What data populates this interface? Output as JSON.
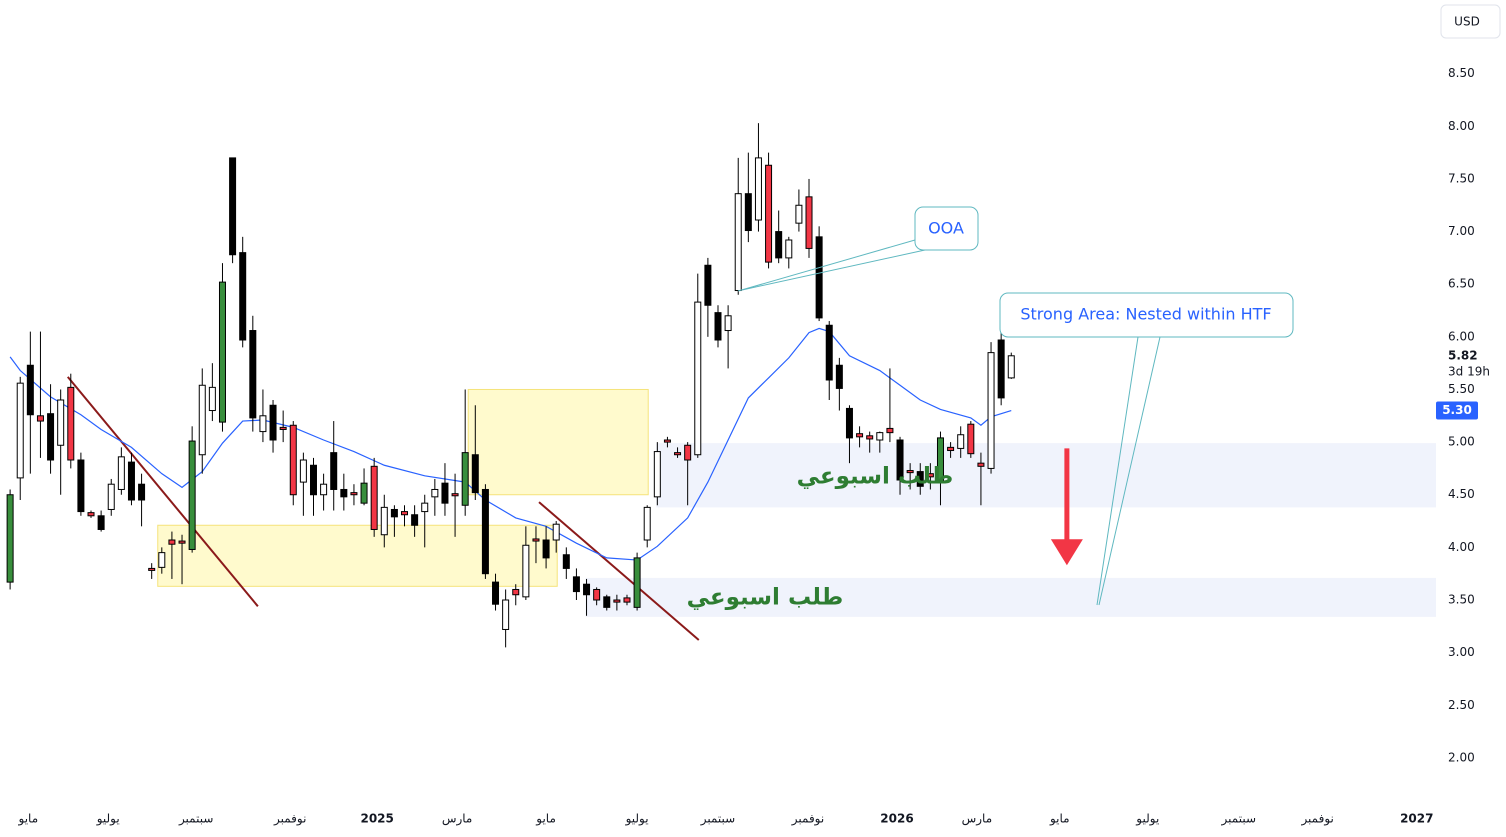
{
  "chart_data": {
    "type": "candlestick",
    "currency": "USD",
    "xlim": [
      -1,
      141
    ],
    "ylim": [
      1.6,
      9.2
    ],
    "grid": false,
    "xticks": [
      {
        "value": 1.8,
        "label": "مايو"
      },
      {
        "value": 9.7,
        "label": "يوليو"
      },
      {
        "value": 18.4,
        "label": "سبتمبر"
      },
      {
        "value": 27.7,
        "label": "نوفمبر"
      },
      {
        "value": 36.3,
        "label": "2025"
      },
      {
        "value": 44.2,
        "label": "مارس"
      },
      {
        "value": 53.0,
        "label": "مايو"
      },
      {
        "value": 62.0,
        "label": "يوليو"
      },
      {
        "value": 70.0,
        "label": "سبتمبر"
      },
      {
        "value": 78.9,
        "label": "نوفمبر"
      },
      {
        "value": 87.7,
        "label": "2026"
      },
      {
        "value": 95.6,
        "label": "مارس"
      },
      {
        "value": 103.8,
        "label": "مايو"
      },
      {
        "value": 112.5,
        "label": "يوليو"
      },
      {
        "value": 121.5,
        "label": "سبتمبر"
      },
      {
        "value": 129.3,
        "label": "نوفمبر"
      },
      {
        "value": 139.1,
        "label": "2027"
      }
    ],
    "yticks": [
      {
        "value": 2,
        "label": "2.00"
      },
      {
        "value": 2.5,
        "label": "2.50"
      },
      {
        "value": 3,
        "label": "3.00"
      },
      {
        "value": 3.5,
        "label": "3.50"
      },
      {
        "value": 4,
        "label": "4.00"
      },
      {
        "value": 4.5,
        "label": "4.50"
      },
      {
        "value": 5,
        "label": "5.00"
      },
      {
        "value": 5.5,
        "label": "5.50"
      },
      {
        "value": 6,
        "label": "6.00"
      },
      {
        "value": 6.5,
        "label": "6.50"
      },
      {
        "value": 7,
        "label": "7.00"
      },
      {
        "value": 7.5,
        "label": "7.50"
      },
      {
        "value": 8,
        "label": "8.00"
      },
      {
        "value": 8.5,
        "label": "8.50"
      }
    ],
    "open": [
      3.67,
      4.66,
      5.73,
      5.25,
      5.27,
      4.97,
      5.52,
      4.83,
      4.33,
      4.3,
      4.36,
      4.55,
      4.81,
      4.6,
      3.8,
      3.81,
      4.07,
      4.06,
      3.98,
      4.88,
      5.3,
      5.19,
      7.7,
      6.8,
      6.06,
      5.1,
      5.35,
      5.14,
      5.16,
      4.62,
      4.78,
      4.5,
      4.9,
      4.55,
      4.52,
      4.42,
      4.77,
      4.12,
      4.36,
      4.34,
      4.31,
      4.34,
      4.48,
      4.61,
      4.51,
      4.4,
      4.88,
      4.55,
      3.67,
      3.22,
      3.55,
      3.53,
      4.08,
      4.07,
      4.07,
      3.93,
      3.72,
      3.65,
      3.6,
      3.53,
      3.5,
      3.52,
      3.43,
      4.07,
      4.48,
      5.02,
      4.9,
      4.97,
      4.88,
      6.68,
      6.23,
      6.06,
      6.44,
      7.36,
      7.11,
      7.63,
      7.0,
      6.75,
      7.08,
      7.33,
      6.95,
      6.11,
      5.73,
      5.32,
      5.08,
      5.06,
      5.02,
      5.13,
      5.02,
      4.73,
      4.72,
      4.7,
      4.62,
      4.95,
      4.94,
      5.17,
      4.8,
      4.75,
      5.97,
      5.61
    ],
    "high": [
      4.55,
      5.62,
      6.05,
      6.05,
      5.55,
      5.5,
      5.65,
      4.9,
      4.35,
      4.35,
      4.65,
      4.95,
      4.9,
      4.7,
      3.85,
      4.0,
      4.15,
      4.12,
      5.15,
      5.7,
      5.75,
      6.7,
      7.7,
      6.95,
      6.2,
      5.5,
      5.4,
      5.3,
      5.2,
      4.9,
      4.85,
      4.7,
      5.2,
      4.7,
      4.6,
      4.75,
      4.85,
      4.5,
      4.4,
      4.4,
      4.4,
      4.5,
      4.65,
      4.8,
      4.7,
      5.5,
      5.35,
      4.6,
      3.75,
      3.6,
      3.65,
      4.2,
      4.2,
      4.2,
      4.25,
      4.0,
      3.8,
      3.7,
      3.62,
      3.55,
      3.55,
      3.55,
      3.95,
      4.4,
      5.0,
      5.05,
      4.95,
      5.0,
      6.6,
      6.75,
      6.3,
      6.3,
      7.7,
      7.75,
      8.03,
      7.75,
      7.2,
      6.95,
      7.4,
      7.5,
      7.05,
      6.15,
      5.8,
      5.35,
      5.15,
      5.1,
      5.1,
      5.7,
      5.05,
      4.8,
      4.8,
      4.8,
      5.1,
      5.0,
      5.15,
      5.2,
      4.9,
      5.95,
      6.2,
      5.85
    ],
    "low": [
      3.6,
      4.45,
      4.7,
      4.85,
      4.7,
      4.5,
      4.75,
      4.3,
      4.28,
      4.15,
      4.3,
      4.5,
      4.4,
      4.2,
      3.7,
      3.75,
      3.7,
      3.65,
      3.95,
      4.7,
      5.2,
      5.1,
      6.7,
      5.9,
      5.1,
      5.0,
      4.9,
      5.0,
      4.4,
      4.3,
      4.3,
      4.35,
      4.35,
      4.35,
      4.4,
      4.4,
      4.1,
      4.0,
      4.1,
      4.2,
      4.1,
      4.0,
      4.3,
      4.3,
      4.1,
      4.3,
      4.45,
      3.7,
      3.4,
      3.05,
      3.45,
      3.5,
      3.85,
      3.8,
      3.95,
      3.7,
      3.5,
      3.35,
      3.45,
      3.4,
      3.4,
      3.45,
      3.4,
      4.0,
      4.4,
      4.95,
      4.85,
      4.4,
      4.85,
      6.0,
      5.9,
      5.7,
      6.4,
      6.9,
      7.0,
      6.65,
      6.7,
      6.65,
      7.0,
      6.75,
      6.15,
      5.4,
      5.3,
      4.8,
      4.95,
      4.9,
      4.9,
      5.0,
      4.5,
      4.55,
      4.5,
      4.55,
      4.4,
      4.85,
      4.85,
      4.85,
      4.4,
      4.7,
      5.35,
      5.6
    ],
    "close": [
      4.5,
      5.56,
      5.26,
      5.2,
      4.83,
      5.4,
      4.83,
      4.34,
      4.3,
      4.17,
      4.6,
      4.86,
      4.45,
      4.45,
      3.79,
      3.95,
      4.03,
      4.04,
      5.01,
      5.54,
      5.52,
      6.52,
      6.78,
      5.97,
      5.23,
      5.25,
      5.02,
      5.12,
      4.5,
      4.83,
      4.5,
      4.6,
      4.55,
      4.48,
      4.5,
      4.61,
      4.17,
      4.38,
      4.29,
      4.31,
      4.21,
      4.42,
      4.55,
      4.42,
      4.49,
      4.9,
      4.52,
      3.75,
      3.46,
      3.5,
      3.6,
      4.02,
      4.06,
      3.9,
      4.22,
      3.8,
      3.58,
      3.55,
      3.5,
      3.43,
      3.48,
      3.48,
      3.9,
      4.38,
      4.91,
      5.0,
      4.88,
      4.83,
      6.33,
      6.3,
      5.97,
      6.2,
      7.36,
      7.01,
      7.7,
      6.71,
      6.75,
      6.92,
      7.25,
      6.84,
      6.18,
      5.59,
      5.51,
      5.04,
      5.05,
      5.03,
      5.09,
      5.09,
      4.64,
      4.71,
      4.58,
      4.67,
      5.04,
      4.92,
      5.07,
      4.89,
      4.77,
      5.85,
      5.42,
      5.82
    ],
    "colors": [
      "#388e3c",
      "#ffffff",
      "#000000",
      "#f23645",
      "#000000",
      "#ffffff",
      "#f23645",
      "#000000",
      "#f23645",
      "#000000",
      "#ffffff",
      "#ffffff",
      "#000000",
      "#000000",
      "#f23645",
      "#ffffff",
      "#f23645",
      "#f23645",
      "#388e3c",
      "#ffffff",
      "#ffffff",
      "#388e3c",
      "#000000",
      "#000000",
      "#000000",
      "#ffffff",
      "#000000",
      "#f23645",
      "#f23645",
      "#ffffff",
      "#000000",
      "#ffffff",
      "#000000",
      "#000000",
      "#f23645",
      "#388e3c",
      "#f23645",
      "#ffffff",
      "#000000",
      "#f23645",
      "#000000",
      "#ffffff",
      "#ffffff",
      "#000000",
      "#f23645",
      "#388e3c",
      "#000000",
      "#000000",
      "#000000",
      "#ffffff",
      "#f23645",
      "#ffffff",
      "#f23645",
      "#000000",
      "#ffffff",
      "#000000",
      "#000000",
      "#000000",
      "#f23645",
      "#000000",
      "#f23645",
      "#f23645",
      "#388e3c",
      "#ffffff",
      "#ffffff",
      "#f23645",
      "#f23645",
      "#f23645",
      "#ffffff",
      "#000000",
      "#000000",
      "#ffffff",
      "#ffffff",
      "#000000",
      "#ffffff",
      "#f23645",
      "#000000",
      "#ffffff",
      "#ffffff",
      "#f23645",
      "#000000",
      "#000000",
      "#000000",
      "#000000",
      "#f23645",
      "#f23645",
      "#ffffff",
      "#f23645",
      "#000000",
      "#f23645",
      "#000000",
      "#f23645",
      "#388e3c",
      "#f23645",
      "#ffffff",
      "#f23645",
      "#f23645",
      "#ffffff",
      "#000000",
      "#ffffff"
    ],
    "ma": {
      "color": "#2962ff",
      "x": [
        0,
        1,
        4,
        7,
        9,
        12,
        15,
        17,
        19,
        21,
        23,
        25,
        28,
        31,
        34,
        37,
        41,
        45,
        47,
        50,
        53,
        56,
        59,
        62,
        64,
        67,
        69,
        71,
        73,
        75,
        77,
        79,
        80,
        81,
        83,
        86,
        88,
        90,
        92,
        95,
        96,
        97,
        99
      ],
      "values": [
        5.81,
        5.68,
        5.43,
        5.26,
        5.12,
        4.95,
        4.7,
        4.57,
        4.72,
        4.99,
        5.2,
        5.21,
        5.14,
        5.02,
        4.91,
        4.78,
        4.68,
        4.62,
        4.45,
        4.28,
        4.2,
        4.04,
        3.9,
        3.88,
        4.01,
        4.28,
        4.62,
        5.02,
        5.42,
        5.61,
        5.8,
        6.04,
        6.08,
        6.05,
        5.82,
        5.68,
        5.54,
        5.4,
        5.31,
        5.23,
        5.16,
        5.24,
        5.3
      ],
      "tag": {
        "value": 5.3,
        "label": "5.30"
      }
    },
    "last_price": 5.82,
    "countdown": "3d 19h",
    "trendlines": [
      {
        "x": [
          5.7,
          24.5
        ],
        "y": [
          5.62,
          3.44
        ]
      },
      {
        "x": [
          52.3,
          68.1
        ],
        "y": [
          4.43,
          3.12
        ]
      }
    ],
    "trendline_color": "#8b1a1a",
    "zones": [
      {
        "x": [
          14.6,
          54.1
        ],
        "y": [
          4.21,
          3.63
        ],
        "color": "#fff9c4",
        "border": "#f5e37a"
      },
      {
        "x": [
          45.3,
          63.1
        ],
        "y": [
          5.5,
          4.5
        ],
        "color": "#fff9c4",
        "border": "#f5e37a"
      },
      {
        "x": [
          63.9,
          141
        ],
        "y": [
          4.99,
          4.38
        ],
        "color": "#edf1fb",
        "border": "none"
      },
      {
        "x": [
          56.9,
          141
        ],
        "y": [
          3.71,
          3.34
        ],
        "color": "#edf1fb",
        "border": "none"
      }
    ],
    "arrow": {
      "x": 104.5,
      "y": [
        4.94,
        3.83
      ],
      "color": "#f23645"
    },
    "annotations": {
      "ooa": "OOA",
      "strong_area": "Strong Area: Nested within HTF",
      "weekly_demand": [
        "طلب اسبوعي",
        "طلب اسبوعي"
      ]
    }
  }
}
